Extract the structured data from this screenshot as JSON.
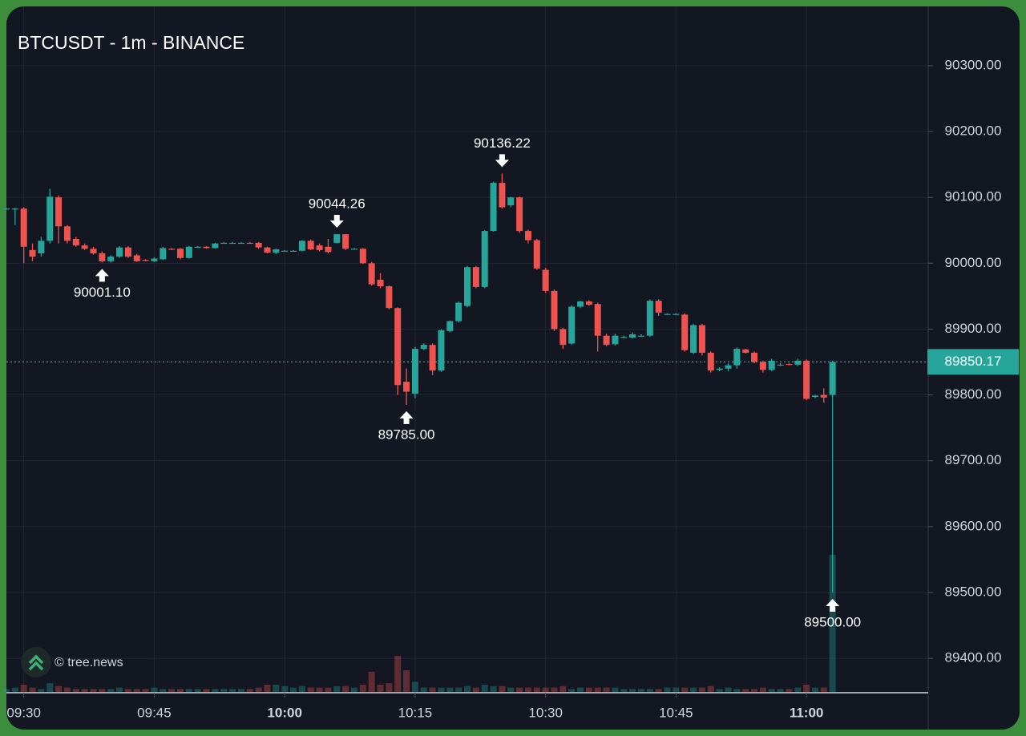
{
  "chart_data": {
    "type": "candlestick",
    "title": "BTCUSDT - 1m - BINANCE",
    "watermark": "© tree.news",
    "up_color": "#26a69a",
    "down_color": "#ef5350",
    "grid": true,
    "x": [
      "09:28",
      "09:29",
      "09:30",
      "09:31",
      "09:32",
      "09:33",
      "09:34",
      "09:35",
      "09:36",
      "09:37",
      "09:38",
      "09:39",
      "09:40",
      "09:41",
      "09:42",
      "09:43",
      "09:44",
      "09:45",
      "09:46",
      "09:47",
      "09:48",
      "09:49",
      "09:50",
      "09:51",
      "09:52",
      "09:53",
      "09:54",
      "09:55",
      "09:56",
      "09:57",
      "09:58",
      "09:59",
      "10:00",
      "10:01",
      "10:02",
      "10:03",
      "10:04",
      "10:05",
      "10:06",
      "10:07",
      "10:08",
      "10:09",
      "10:10",
      "10:11",
      "10:12",
      "10:13",
      "10:14",
      "10:15",
      "10:16",
      "10:17",
      "10:18",
      "10:19",
      "10:20",
      "10:21",
      "10:22",
      "10:23",
      "10:24",
      "10:25",
      "10:26",
      "10:27",
      "10:28",
      "10:29",
      "10:30",
      "10:31",
      "10:32",
      "10:33",
      "10:34",
      "10:35",
      "10:36",
      "10:37",
      "10:38",
      "10:39",
      "10:40",
      "10:41",
      "10:42",
      "10:43",
      "10:44",
      "10:45",
      "10:46",
      "10:47",
      "10:48",
      "10:49",
      "10:50",
      "10:51",
      "10:52",
      "10:53",
      "10:54",
      "10:55",
      "10:56",
      "10:57",
      "10:58",
      "10:59",
      "11:00",
      "11:01",
      "11:02",
      "11:03"
    ],
    "open": [
      90083,
      90082,
      90083,
      90020,
      90015,
      90034,
      90100,
      90056,
      90037,
      90027,
      90022,
      90015,
      90003,
      90010,
      90024,
      90012,
      90005,
      90003,
      90006,
      90022,
      90022,
      90008,
      90025,
      90025,
      90023,
      90031,
      90031,
      90031,
      90031,
      90031,
      90024,
      90016,
      90019,
      90019,
      90019,
      90034,
      90027,
      90025,
      90031,
      90044,
      90022,
      90022,
      90000,
      89975,
      89965,
      89932,
      89820,
      89802,
      89870,
      89876,
      89837,
      89897,
      89912,
      89935,
      89994,
      89964,
      90049,
      90122,
      90088,
      90100,
      90049,
      90035,
      89990,
      89958,
      89900,
      89878,
      89934,
      89942,
      89938,
      89890,
      89877,
      89888,
      89887,
      89890,
      89890,
      89943,
      89923,
      89923,
      89922,
      89864,
      89906,
      89864,
      89838,
      89840,
      89845,
      89869,
      89864,
      89850,
      89838,
      89846,
      89847,
      89846,
      89852,
      89797,
      89800,
      89800
    ],
    "high": [
      90084,
      90084,
      90085,
      90030,
      90040,
      90113,
      90103,
      90058,
      90040,
      90030,
      90025,
      90018,
      90012,
      90026,
      90026,
      90014,
      90006,
      90009,
      90025,
      90023,
      90023,
      90026,
      90026,
      90026,
      90031,
      90032,
      90032,
      90032,
      90032,
      90032,
      90025,
      90022,
      90020,
      90020,
      90035,
      90036,
      90030,
      90037,
      90044.26,
      90044,
      90023,
      90023,
      90002,
      89985,
      89966,
      89933,
      89840,
      89873,
      89878,
      89878,
      89900,
      89913,
      89942,
      89996,
      89996,
      90050,
      90124,
      90136.22,
      90101,
      90101,
      90051,
      90037,
      89993,
      89960,
      89902,
      89936,
      89943,
      89944,
      89940,
      89893,
      89893,
      89890,
      89895,
      89892,
      89945,
      89945,
      89924,
      89924,
      89924,
      89908,
      89908,
      89866,
      89842,
      89848,
      89872,
      89870,
      89866,
      89852,
      89855,
      89848,
      89848,
      89855,
      89854,
      89800,
      89810,
      89852
    ],
    "low": [
      90082,
      90058,
      90000,
      90003,
      90010,
      90030,
      90030,
      90030,
      90025,
      90020,
      90013,
      90001.1,
      90001,
      90008,
      90008,
      90002,
      90003,
      90002,
      90005,
      90020,
      90006,
      90007,
      90024,
      90022,
      90022,
      90030,
      90030,
      90030,
      90030,
      90022,
      90015,
      90014,
      90018,
      90018,
      90018,
      90020,
      90018,
      90015,
      90030,
      90020,
      90021,
      89999,
      89966,
      89962,
      89930,
      89800,
      89785,
      89795,
      89868,
      89830,
      89835,
      89895,
      89910,
      89933,
      89962,
      89962,
      90048,
      90083,
      90085,
      90046,
      90030,
      89990,
      89955,
      89897,
      89870,
      89876,
      89932,
      89935,
      89866,
      89874,
      89875,
      89886,
      89886,
      89888,
      89888,
      89920,
      89922,
      89922,
      89866,
      89862,
      89860,
      89834,
      89836,
      89836,
      89840,
      89863,
      89848,
      89834,
      89836,
      89844,
      89845,
      89844,
      89792,
      89795,
      89788,
      89500
    ],
    "close": [
      90083,
      90083,
      90025,
      90010,
      90034,
      90101,
      90056,
      90034,
      90027,
      90022,
      90015,
      90003,
      90010,
      90024,
      90010,
      90003,
      90004,
      90007,
      90023,
      90021,
      90008,
      90025,
      90025,
      90023,
      90030,
      90031,
      90031,
      90031,
      90030,
      90024,
      90016,
      90021,
      90019,
      90019,
      90034,
      90021,
      90020,
      90017,
      90044,
      90022,
      90022,
      90000,
      89968,
      89965,
      89932,
      89815,
      89805,
      89870,
      89876,
      89837,
      89898,
      89912,
      89940,
      89994,
      89964,
      90049,
      90122,
      90085,
      90100,
      90049,
      90035,
      89992,
      89958,
      89900,
      89876,
      89934,
      89942,
      89937,
      89890,
      89876,
      89890,
      89888,
      89892,
      89890,
      89943,
      89925,
      89923,
      89923,
      89868,
      89906,
      89864,
      89837,
      89840,
      89845,
      89870,
      89864,
      89850,
      89838,
      89852,
      89846,
      89846,
      89852,
      89794,
      89799,
      89796,
      89850.17
    ],
    "volume": [
      2,
      3,
      5,
      3,
      2,
      6,
      4,
      3,
      2,
      2,
      2,
      2,
      2,
      3,
      2,
      2,
      2,
      3,
      2,
      2,
      2,
      2,
      2,
      2,
      2,
      2,
      2,
      2,
      2,
      3,
      5,
      5,
      4,
      3,
      4,
      3,
      3,
      3,
      4,
      4,
      3,
      5,
      14,
      5,
      6,
      25,
      15,
      7,
      3,
      3,
      3,
      3,
      3,
      4,
      3,
      5,
      4,
      4,
      3,
      3,
      3,
      3,
      3,
      3,
      4,
      2,
      3,
      3,
      3,
      3,
      3,
      2,
      2,
      2,
      2,
      2,
      3,
      3,
      3,
      3,
      3,
      4,
      2,
      3,
      2,
      2,
      2,
      3,
      2,
      2,
      2,
      3,
      5,
      3,
      3,
      95
    ],
    "xlim": [
      "09:28",
      "11:14"
    ],
    "xticks": [
      "09:30",
      "09:45",
      "10:00",
      "10:15",
      "10:30",
      "10:45",
      "11:00"
    ],
    "ylim": [
      89349,
      90390
    ],
    "yticks": [
      {
        "value": 89400,
        "label": "89400.00"
      },
      {
        "value": 89500,
        "label": "89500.00"
      },
      {
        "value": 89600,
        "label": "89600.00"
      },
      {
        "value": 89700,
        "label": "89700.00"
      },
      {
        "value": 89800,
        "label": "89800.00"
      },
      {
        "value": 89900,
        "label": "89900.00"
      },
      {
        "value": 90000,
        "label": "90000.00"
      },
      {
        "value": 90100,
        "label": "90100.00"
      },
      {
        "value": 90200,
        "label": "90200.00"
      },
      {
        "value": 90300,
        "label": "90300.00"
      }
    ],
    "vlim": [
      0,
      100
    ],
    "last_price": {
      "value": 89850.17,
      "label": "89850.17"
    },
    "annotations": [
      {
        "x": "09:39",
        "value": 90001.1,
        "label": "90001.10"
      },
      {
        "x": "10:06",
        "value": 90044.26,
        "label": "90044.26"
      },
      {
        "x": "10:14",
        "value": 89785,
        "label": "89785.00"
      },
      {
        "x": "10:25",
        "value": 90136.22,
        "label": "90136.22"
      },
      {
        "x": "11:03",
        "value": 89500,
        "label": "89500.00"
      }
    ]
  }
}
